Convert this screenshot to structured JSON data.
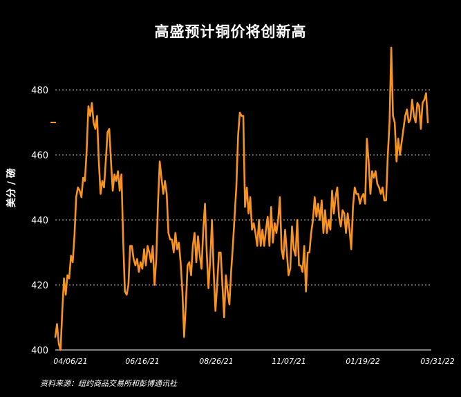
{
  "title": "高盛预计铜价将创新高",
  "source": "资料来源：纽约商品交易所和彭博通讯社",
  "colors": {
    "background": "#000000",
    "line": "#f7931e",
    "text": "#ffffff",
    "grid": "#bbbbbb"
  },
  "chart_data": {
    "type": "line",
    "title": "高盛预计铜价将创新高",
    "ylabel": "美分 / 磅",
    "xlabel": "",
    "ylim": [
      400,
      482
    ],
    "yticks": [
      400,
      420,
      440,
      460,
      480
    ],
    "xticks": [
      "04/06/21",
      "06/16/21",
      "08/26/21",
      "11/07/21",
      "01/19/22",
      "03/31/22"
    ],
    "grid": "horizontal dotted",
    "start_marker": 470,
    "series": [
      {
        "values": [
          404,
          408,
          402,
          400,
          412,
          422,
          417,
          423,
          422,
          429,
          427,
          435,
          447,
          450,
          449,
          447,
          453,
          452,
          461,
          475,
          472,
          476,
          470,
          468,
          472,
          458,
          448,
          452,
          450,
          458,
          467,
          468,
          458,
          449,
          454,
          452,
          455,
          449,
          454,
          434,
          418,
          417,
          420,
          432,
          432,
          428,
          426,
          428,
          424,
          427,
          425,
          431,
          426,
          432,
          430,
          427,
          432,
          420,
          428,
          445,
          458,
          453,
          448,
          452,
          448,
          436,
          434,
          434,
          430,
          436,
          431,
          433,
          427,
          418,
          404,
          414,
          426,
          427,
          423,
          432,
          436,
          427,
          435,
          429,
          425,
          437,
          445,
          430,
          419,
          428,
          440,
          424,
          412,
          420,
          430,
          430,
          420,
          410,
          423,
          418,
          414,
          424,
          432,
          441,
          450,
          466,
          473,
          472,
          472,
          444,
          450,
          442,
          447,
          437,
          439,
          436,
          432,
          440,
          432,
          437,
          432,
          437,
          441,
          432,
          444,
          433,
          439,
          436,
          440,
          447,
          431,
          428,
          437,
          430,
          423,
          425,
          438,
          431,
          429,
          440,
          426,
          426,
          424,
          432,
          418,
          430,
          430,
          436,
          440,
          447,
          441,
          445,
          440,
          446,
          436,
          443,
          436,
          440,
          437,
          449,
          442,
          447,
          450,
          441,
          438,
          443,
          442,
          436,
          442,
          437,
          431,
          444,
          450,
          448,
          448,
          445,
          447,
          448,
          445,
          465,
          458,
          448,
          455,
          453,
          455,
          451,
          450,
          448,
          450,
          446,
          446,
          460,
          470,
          493,
          472,
          470,
          458,
          465,
          460,
          464,
          468,
          472,
          474,
          470,
          471,
          477,
          472,
          470,
          476,
          475,
          468,
          476,
          477,
          479,
          470
        ]
      }
    ]
  }
}
